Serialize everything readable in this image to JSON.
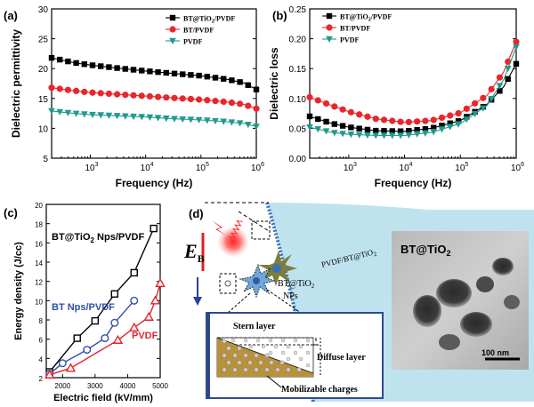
{
  "panels": {
    "a": "(a)",
    "b": "(b)",
    "c": "(c)",
    "d": "(d)"
  },
  "chart_data": [
    {
      "id": "a",
      "type": "line",
      "xscale": "log",
      "xlabel": "Frequency (Hz)",
      "ylabel": "Dielectric permittivity",
      "xlim": [
        200,
        1000000
      ],
      "ylim": [
        5,
        30
      ],
      "yticks": [
        5,
        10,
        15,
        20,
        25,
        30
      ],
      "xticks": [
        {
          "v": 1000,
          "base": "10",
          "exp": "3"
        },
        {
          "v": 10000,
          "base": "10",
          "exp": "4"
        },
        {
          "v": 100000,
          "base": "10",
          "exp": "5"
        },
        {
          "v": 1000000,
          "base": "10",
          "exp": "6"
        }
      ],
      "legend_position": "top-right",
      "series": [
        {
          "name": "BT@TiO2/PVDF",
          "color": "#000000",
          "marker": "square",
          "x": [
            200,
            500,
            1000,
            3000,
            10000,
            30000,
            100000,
            300000,
            600000,
            1000000
          ],
          "y": [
            21.8,
            21.0,
            20.6,
            20.1,
            19.6,
            19.2,
            18.8,
            18.2,
            17.6,
            16.5
          ]
        },
        {
          "name": "BT/PVDF",
          "color": "#e8262b",
          "marker": "circle",
          "x": [
            200,
            500,
            1000,
            3000,
            10000,
            30000,
            100000,
            300000,
            600000,
            1000000
          ],
          "y": [
            16.8,
            16.3,
            16.0,
            15.7,
            15.4,
            15.1,
            14.8,
            14.4,
            14.0,
            13.3
          ]
        },
        {
          "name": "PVDF",
          "color": "#1f9a8e",
          "marker": "triangle-down",
          "x": [
            200,
            500,
            1000,
            3000,
            10000,
            30000,
            100000,
            300000,
            600000,
            1000000
          ],
          "y": [
            12.9,
            12.5,
            12.3,
            12.1,
            11.9,
            11.6,
            11.4,
            11.1,
            10.8,
            10.3
          ]
        }
      ]
    },
    {
      "id": "b",
      "type": "line",
      "xscale": "log",
      "xlabel": "Frequency (Hz)",
      "ylabel": "Dielectric loss",
      "xlim": [
        200,
        1000000
      ],
      "ylim": [
        0.0,
        0.25
      ],
      "yticks": [
        "0.00",
        "0.05",
        "0.10",
        "0.15",
        "0.20",
        "0.25"
      ],
      "xticks": [
        {
          "v": 1000,
          "base": "10",
          "exp": "3"
        },
        {
          "v": 10000,
          "base": "10",
          "exp": "4"
        },
        {
          "v": 100000,
          "base": "10",
          "exp": "5"
        },
        {
          "v": 1000000,
          "base": "10",
          "exp": "6"
        }
      ],
      "legend_position": "top-left",
      "series": [
        {
          "name": "BT@TiO2/PVDF",
          "color": "#000000",
          "marker": "square",
          "x": [
            200,
            500,
            1000,
            3000,
            10000,
            30000,
            100000,
            300000,
            600000,
            1000000
          ],
          "y": [
            0.07,
            0.058,
            0.052,
            0.046,
            0.045,
            0.05,
            0.063,
            0.09,
            0.12,
            0.158
          ]
        },
        {
          "name": "BT/PVDF",
          "color": "#e8262b",
          "marker": "circle",
          "x": [
            200,
            500,
            1000,
            3000,
            10000,
            30000,
            100000,
            300000,
            600000,
            1000000
          ],
          "y": [
            0.102,
            0.088,
            0.078,
            0.066,
            0.06,
            0.063,
            0.076,
            0.105,
            0.145,
            0.195
          ]
        },
        {
          "name": "PVDF",
          "color": "#1f9a8e",
          "marker": "triangle-down",
          "x": [
            200,
            500,
            1000,
            3000,
            10000,
            30000,
            100000,
            300000,
            600000,
            1000000
          ],
          "y": [
            0.052,
            0.043,
            0.04,
            0.038,
            0.038,
            0.043,
            0.058,
            0.088,
            0.132,
            0.186
          ]
        }
      ]
    },
    {
      "id": "c",
      "type": "line",
      "xscale": "linear",
      "xlabel": "Electric field (kV/mm)",
      "ylabel": "Energy density (J/cc)",
      "xlim": [
        1500,
        5000
      ],
      "ylim": [
        2,
        20
      ],
      "yticks": [
        2,
        4,
        6,
        8,
        10,
        12,
        14,
        16,
        18,
        20
      ],
      "xticks": [
        2000,
        3000,
        4000,
        5000
      ],
      "series": [
        {
          "name": "BT@TiO2 Nps/PVDF",
          "label": "BT@TiO",
          "label_sub": "2",
          "label_rest": " Nps/PVDF",
          "color": "#000000",
          "marker": "square-open",
          "x": [
            1600,
            2450,
            3000,
            3600,
            4200,
            4800
          ],
          "y": [
            2.6,
            6.1,
            7.9,
            10.7,
            12.9,
            17.5
          ]
        },
        {
          "name": "BT Nps/PVDF",
          "color": "#2e4fa8",
          "marker": "circle-open",
          "x": [
            1600,
            2000,
            2750,
            3300,
            3600,
            4200
          ],
          "y": [
            2.4,
            3.5,
            4.9,
            6.1,
            7.7,
            10.0
          ]
        },
        {
          "name": "PVDF",
          "color": "#e0262b",
          "marker": "triangle-open",
          "x": [
            1600,
            2250,
            3700,
            4200,
            4650,
            4850,
            5000
          ],
          "y": [
            2.3,
            3.0,
            5.9,
            7.2,
            8.3,
            10.0,
            11.8
          ]
        }
      ]
    }
  ],
  "legend_ab": {
    "a": [
      {
        "pre": "BT@TiO",
        "sub": "2",
        "post": "/PVDF"
      },
      {
        "pre": "BT/PVDF",
        "sub": "",
        "post": ""
      },
      {
        "pre": "PVDF",
        "sub": "",
        "post": ""
      }
    ],
    "b": [
      {
        "pre": "BT@TiO",
        "sub": "2",
        "post": "/PVDF"
      },
      {
        "pre": "BT/PVDF",
        "sub": "",
        "post": ""
      },
      {
        "pre": "PVDF",
        "sub": "",
        "post": ""
      }
    ]
  },
  "diagram": {
    "field_letter": "E",
    "field_sub": "B",
    "interface_label": "PVDF/BT@TiO",
    "interface_sub": "2",
    "np_label_line1": "BT@TiO",
    "np_label_sub": "2",
    "np_label_line2": "NPs",
    "stern_layer": "Stern layer",
    "diffuse_layer": "Diffuse layer",
    "mobilizable": "Mobilizable charges",
    "tem_title": "BT@TiO",
    "tem_title_sub": "2",
    "scale_bar": "100 nm"
  }
}
